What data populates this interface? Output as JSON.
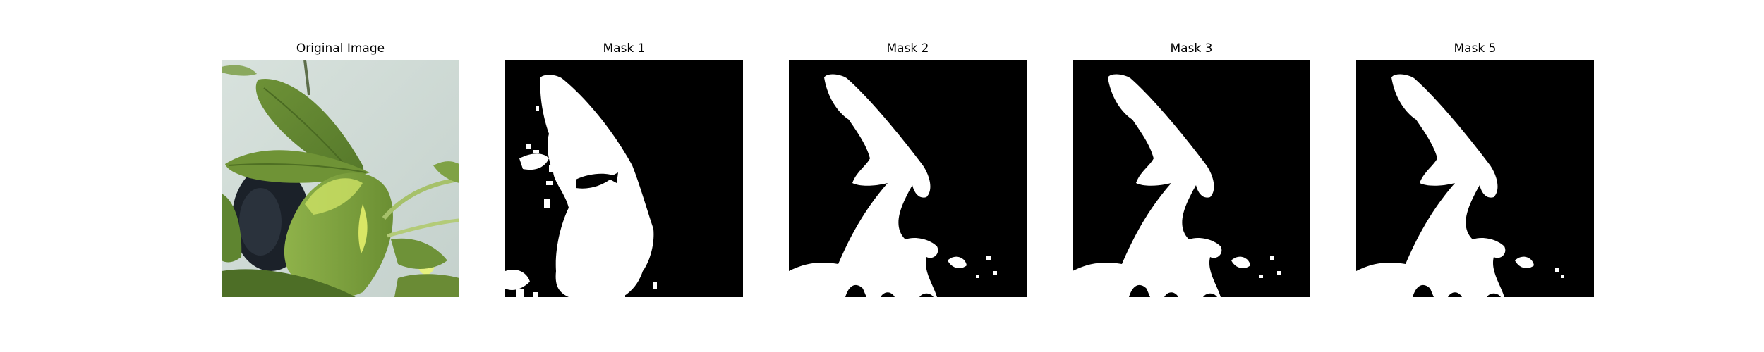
{
  "figure": {
    "background": "#ffffff",
    "panels": [
      {
        "id": "original",
        "title": "Original Image",
        "kind": "photo"
      },
      {
        "id": "mask1",
        "title": "Mask 1",
        "kind": "mask"
      },
      {
        "id": "mask2",
        "title": "Mask 2",
        "kind": "mask"
      },
      {
        "id": "mask3",
        "title": "Mask 3",
        "kind": "mask"
      },
      {
        "id": "mask5",
        "title": "Mask 5",
        "kind": "mask"
      }
    ]
  },
  "colors": {
    "mask_background": "#000000",
    "mask_foreground": "#ffffff",
    "photo_background": "#c9d6d0",
    "leaf_dark": "#5f7f2c",
    "leaf_mid": "#7ea33f",
    "leaf_light": "#b9d65a",
    "pot_dark": "#1a1f26"
  }
}
